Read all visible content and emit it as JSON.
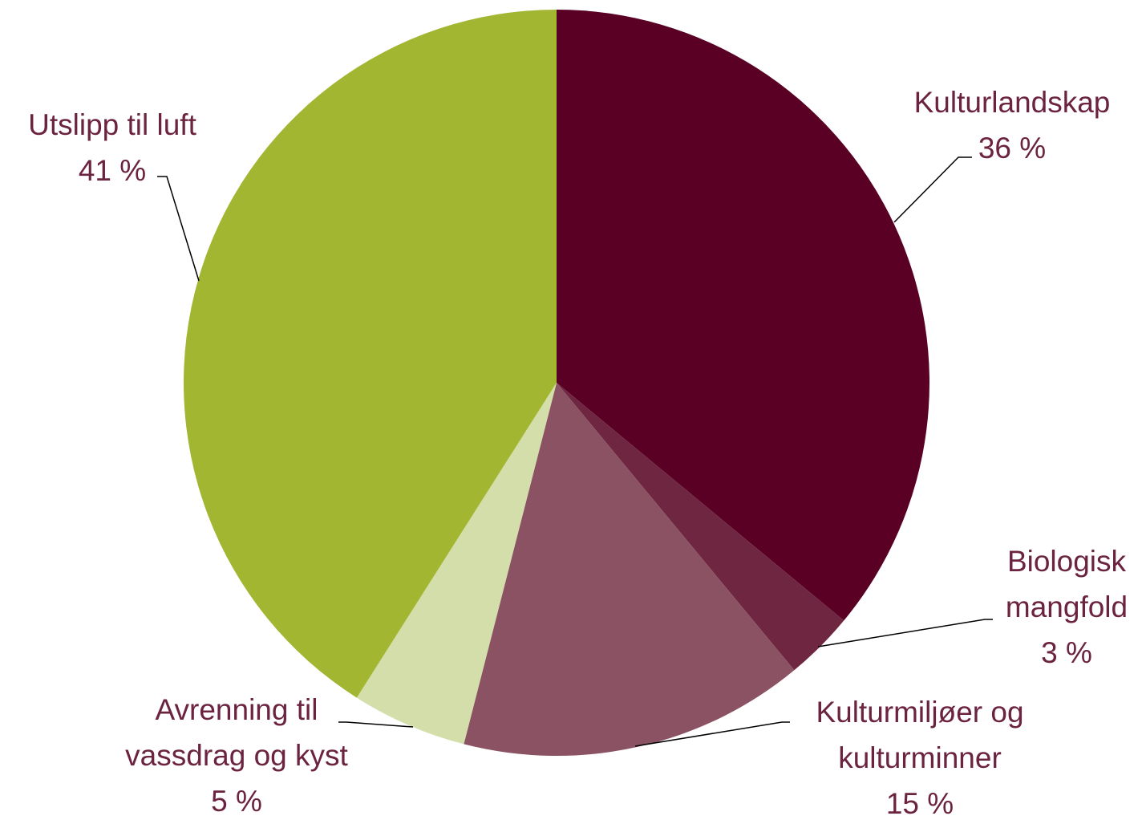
{
  "chart_data": {
    "type": "pie",
    "categories": [
      "Kulturlandskap",
      "Biologisk mangfold",
      "Kulturmiljøer og kulturminner",
      "Avrenning til vassdrag og kyst",
      "Utslipp til luft"
    ],
    "values": [
      36,
      3,
      15,
      5,
      41
    ],
    "value_labels": [
      "36 %",
      "3 %",
      "15 %",
      "5 %",
      "41 %"
    ],
    "colors": [
      "#5a0024",
      "#6f2640",
      "#8b5263",
      "#d4deaa",
      "#a3b632"
    ]
  }
}
